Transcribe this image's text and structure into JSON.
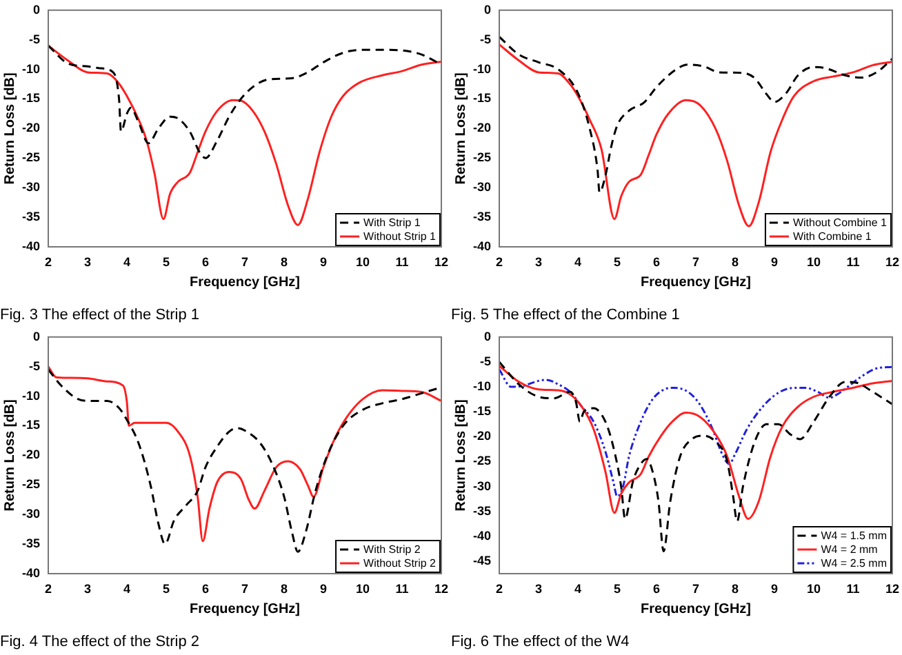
{
  "chart_data": [
    {
      "type": "line",
      "title": "Fig. 3 The effect of the Strip 1",
      "xlabel": "Frequency [GHz]",
      "ylabel": "Return Loss [dB]",
      "xlim": [
        2,
        12
      ],
      "xticks": [
        2,
        3,
        4,
        5,
        6,
        7,
        8,
        9,
        10,
        11,
        12
      ],
      "ylim": [
        -40,
        0
      ],
      "yticks": [
        -40,
        -35,
        -30,
        -25,
        -20,
        -15,
        -10,
        -5,
        0
      ],
      "grid": false,
      "legend": "bottom right",
      "marker": "none",
      "series": [
        {
          "name": "With Strip 1",
          "color": "#000000",
          "line_style": "dashed",
          "x": [
            2,
            2.5,
            3,
            3.3,
            3.65,
            3.8,
            3.85,
            4,
            4.1,
            4.3,
            4.55,
            4.8,
            5.1,
            5.3,
            5.6,
            5.85,
            6,
            6.3,
            6.6,
            6.9,
            7.2,
            7.6,
            8.2,
            8.6,
            9,
            9.5,
            10,
            10.5,
            11,
            11.5,
            12
          ],
          "values": [
            -6,
            -9,
            -9.5,
            -9.8,
            -10.5,
            -15,
            -20.5,
            -17.5,
            -16.5,
            -19,
            -22.5,
            -20,
            -18,
            -18.3,
            -20.5,
            -24,
            -25,
            -22,
            -18,
            -15,
            -13,
            -11.7,
            -11.5,
            -10.5,
            -8.8,
            -7.2,
            -6.7,
            -6.7,
            -6.8,
            -7.5,
            -9.2
          ]
        },
        {
          "name": "Without Strip 1",
          "color": "#ff2020",
          "line_style": "solid",
          "x": [
            2,
            2.5,
            3,
            3.5,
            3.75,
            4,
            4.3,
            4.5,
            4.7,
            4.93,
            5.1,
            5.3,
            5.6,
            5.8,
            6,
            6.3,
            6.7,
            6.9,
            7.2,
            7.5,
            7.8,
            8.1,
            8.35,
            8.6,
            8.9,
            9.2,
            9.5,
            9.9,
            10.5,
            11,
            11.5,
            12
          ],
          "values": [
            -6,
            -8.5,
            -10.5,
            -10.7,
            -12,
            -14.5,
            -18.5,
            -22,
            -27.5,
            -35.3,
            -31,
            -29,
            -27.5,
            -24,
            -20.5,
            -17,
            -15.2,
            -15.3,
            -17,
            -20.5,
            -26,
            -33,
            -36.3,
            -32,
            -24,
            -18,
            -14.5,
            -12.3,
            -11,
            -10.3,
            -9.2,
            -8.7
          ]
        }
      ]
    },
    {
      "type": "line",
      "title": "Fig. 5 The effect of the Combine 1",
      "xlabel": "Frequency [GHz]",
      "ylabel": "Return Loss [dB]",
      "xlim": [
        2,
        12
      ],
      "xticks": [
        2,
        3,
        4,
        5,
        6,
        7,
        8,
        9,
        10,
        11,
        12
      ],
      "ylim": [
        -40,
        0
      ],
      "yticks": [
        -40,
        -35,
        -30,
        -25,
        -20,
        -15,
        -10,
        -5,
        0
      ],
      "grid": false,
      "legend": "bottom right",
      "marker": "none",
      "series": [
        {
          "name": "Without Combine 1",
          "color": "#000000",
          "line_style": "dashed",
          "x": [
            2,
            2.5,
            3,
            3.5,
            4,
            4.3,
            4.5,
            4.55,
            4.7,
            4.85,
            5,
            5.3,
            5.7,
            6,
            6.5,
            6.8,
            7.2,
            7.6,
            8.2,
            8.5,
            8.8,
            9,
            9.3,
            9.6,
            10,
            10.3,
            10.8,
            11.2,
            11.6,
            12
          ],
          "values": [
            -4.5,
            -7.5,
            -8.8,
            -10,
            -14,
            -20,
            -27,
            -30.8,
            -28,
            -23,
            -19.5,
            -17,
            -15.5,
            -13,
            -10,
            -9.2,
            -9.5,
            -10.5,
            -10.6,
            -11.5,
            -14.2,
            -15.5,
            -14,
            -11,
            -9.6,
            -9.8,
            -11,
            -11.4,
            -10.5,
            -8.2
          ]
        },
        {
          "name": "With Combine 1",
          "color": "#ff2020",
          "line_style": "solid",
          "x": [
            2,
            2.5,
            3,
            3.5,
            3.8,
            4,
            4.3,
            4.6,
            4.93,
            5.1,
            5.3,
            5.6,
            5.8,
            6,
            6.3,
            6.75,
            7.1,
            7.5,
            7.8,
            8.1,
            8.35,
            8.6,
            8.9,
            9.2,
            9.5,
            10,
            10.5,
            11,
            11.5,
            12
          ],
          "values": [
            -5.8,
            -8.5,
            -10.5,
            -10.7,
            -12.5,
            -14.5,
            -18.5,
            -23.5,
            -35.3,
            -31.5,
            -29,
            -27.8,
            -24.5,
            -21,
            -17.5,
            -15.2,
            -16,
            -20,
            -25.5,
            -33,
            -36.5,
            -32.5,
            -24,
            -18.5,
            -14.5,
            -12,
            -11.2,
            -10.5,
            -9.3,
            -8.7
          ]
        }
      ]
    },
    {
      "type": "line",
      "title": "Fig. 4 The effect of the Strip 2",
      "xlabel": "Frequency [GHz]",
      "ylabel": "Return Loss [dB]",
      "xlim": [
        2,
        12
      ],
      "xticks": [
        2,
        3,
        4,
        5,
        6,
        7,
        8,
        9,
        10,
        11,
        12
      ],
      "ylim": [
        -40,
        0
      ],
      "yticks": [
        -40,
        -35,
        -30,
        -25,
        -20,
        -15,
        -10,
        -5,
        0
      ],
      "grid": false,
      "legend": "bottom right",
      "marker": "none",
      "series": [
        {
          "name": "With Strip 2",
          "color": "#000000",
          "line_style": "dashed",
          "x": [
            2,
            2.3,
            2.7,
            3,
            3.5,
            3.8,
            4,
            4.3,
            4.6,
            4.8,
            4.97,
            5.2,
            5.5,
            5.8,
            6,
            6.3,
            6.6,
            6.8,
            7.1,
            7.4,
            7.7,
            8,
            8.2,
            8.35,
            8.55,
            8.8,
            9.1,
            9.5,
            10,
            10.5,
            11,
            11.5,
            12
          ],
          "values": [
            -5.5,
            -8,
            -10.3,
            -10.8,
            -10.8,
            -12,
            -14,
            -18,
            -25,
            -31.5,
            -35,
            -31,
            -28.5,
            -26,
            -22,
            -18.5,
            -16,
            -15.4,
            -16.2,
            -18,
            -21.5,
            -27,
            -33,
            -36.3,
            -33,
            -26,
            -20,
            -15,
            -12.3,
            -11.2,
            -10.5,
            -9.5,
            -8.5
          ]
        },
        {
          "name": "Without Strip 2",
          "color": "#ff2020",
          "line_style": "solid",
          "x": [
            2,
            2.2,
            2.5,
            3,
            3.5,
            3.9,
            4,
            4.05,
            4.2,
            4.6,
            5,
            5.3,
            5.6,
            5.8,
            5.93,
            6.1,
            6.3,
            6.6,
            6.9,
            7.1,
            7.25,
            7.5,
            7.8,
            8.1,
            8.4,
            8.6,
            8.75,
            9,
            9.3,
            9.6,
            10,
            10.5,
            11,
            11.5,
            12
          ],
          "values": [
            -5,
            -6.8,
            -6.9,
            -7,
            -7.5,
            -8.2,
            -11,
            -15,
            -14.5,
            -14.5,
            -14.5,
            -16,
            -20,
            -27,
            -34.5,
            -29,
            -24.5,
            -22.8,
            -24,
            -27.5,
            -29,
            -26,
            -22,
            -21,
            -22.3,
            -25,
            -27,
            -22,
            -17,
            -13.5,
            -10.5,
            -9,
            -9.1,
            -9.3,
            -10.8
          ]
        }
      ]
    },
    {
      "type": "line",
      "title": "Fig. 6 The effect of the W4",
      "xlabel": "Frequency [GHz]",
      "ylabel": "Return Loss [dB]",
      "xlim": [
        2,
        12
      ],
      "xticks": [
        2,
        3,
        4,
        5,
        6,
        7,
        8,
        9,
        10,
        11,
        12
      ],
      "ylim": [
        -47.5,
        0
      ],
      "yticks": [
        -45,
        -40,
        -35,
        -30,
        -25,
        -20,
        -15,
        -10,
        -5,
        0
      ],
      "grid": false,
      "legend": "bottom right",
      "marker": "none",
      "series": [
        {
          "name": "W4 = 1.5 mm",
          "color": "#000000",
          "line_style": "dashed",
          "x": [
            2,
            2.5,
            3,
            3.4,
            3.8,
            3.95,
            4.05,
            4.15,
            4.4,
            4.7,
            4.9,
            5.1,
            5.2,
            5.4,
            5.6,
            5.75,
            5.9,
            6.05,
            6.18,
            6.35,
            6.6,
            6.9,
            7.2,
            7.5,
            7.8,
            7.95,
            8.05,
            8.2,
            8.5,
            8.8,
            9.1,
            9.4,
            9.65,
            10,
            10.4,
            10.8,
            11.1,
            11.5,
            12
          ],
          "values": [
            -5,
            -9.5,
            -12,
            -12.3,
            -11,
            -13,
            -17,
            -15,
            -14.3,
            -17,
            -22,
            -30,
            -36.5,
            -29,
            -25.5,
            -24.5,
            -27,
            -33,
            -43,
            -33,
            -24,
            -20.5,
            -19.8,
            -21,
            -25,
            -32,
            -37,
            -30,
            -21,
            -17.5,
            -17.5,
            -19.5,
            -20.5,
            -17,
            -12,
            -9,
            -9.2,
            -11,
            -13.5
          ]
        },
        {
          "name": "W4 = 2 mm",
          "color": "#ff2020",
          "line_style": "solid",
          "x": [
            2,
            2.5,
            3,
            3.5,
            3.8,
            4.1,
            4.4,
            4.7,
            4.93,
            5.1,
            5.3,
            5.6,
            5.8,
            6.1,
            6.4,
            6.75,
            7.1,
            7.5,
            7.8,
            8.1,
            8.33,
            8.6,
            8.9,
            9.2,
            9.6,
            10,
            10.5,
            11,
            11.5,
            12
          ],
          "values": [
            -5.8,
            -9,
            -10.5,
            -10.7,
            -11.5,
            -14,
            -18.5,
            -27,
            -35.3,
            -31.5,
            -29.2,
            -27.5,
            -24,
            -20,
            -17,
            -15.2,
            -16,
            -19.5,
            -24,
            -32,
            -36.5,
            -33,
            -24,
            -18,
            -14,
            -12,
            -11,
            -10.2,
            -9.3,
            -8.8
          ]
        },
        {
          "name": "W4 = 2.5 mm",
          "color": "#2020e0",
          "line_style": "dotted",
          "x": [
            2,
            2.3,
            2.6,
            3,
            3.2,
            3.5,
            3.8,
            4.1,
            4.4,
            4.7,
            4.9,
            5,
            5.15,
            5.3,
            5.6,
            5.9,
            6.2,
            6.45,
            6.8,
            7.1,
            7.4,
            7.7,
            7.85,
            8,
            8.3,
            8.7,
            9.1,
            9.5,
            9.8,
            10.1,
            10.4,
            10.6,
            10.9,
            11.2,
            11.6,
            12
          ],
          "values": [
            -6.5,
            -10,
            -9.8,
            -8.8,
            -8.6,
            -9.5,
            -11,
            -14,
            -17,
            -23,
            -29,
            -32,
            -30,
            -24,
            -17,
            -12.5,
            -10.5,
            -10.2,
            -11,
            -13.5,
            -18,
            -24,
            -25.5,
            -23.5,
            -18.5,
            -14,
            -11.2,
            -10.2,
            -10.2,
            -11,
            -12.2,
            -11.5,
            -9.8,
            -8,
            -6.3,
            -6
          ]
        }
      ]
    }
  ]
}
